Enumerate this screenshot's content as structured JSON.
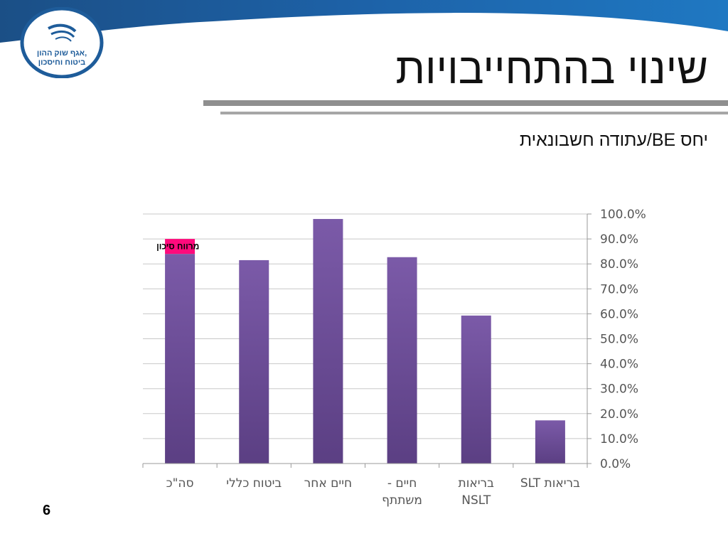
{
  "header": {
    "title": "שינוי בהתחייבויות",
    "subtitle": "יחס BE/עתודה חשבונאית",
    "logo_text_line1": "אגף שוק ההון,",
    "logo_text_line2": "ביטוח וחיסכון"
  },
  "footer": {
    "page_number": "6"
  },
  "colors": {
    "banner": "#1e5c9a",
    "bar_top": "#7b5aa8",
    "bar_bottom": "#5b3f83",
    "risk_margin": "#ff0a7c",
    "grid": "#c8c8c8"
  },
  "chart_data": {
    "type": "bar",
    "stacked": true,
    "categories": [
      [
        "סה\"כ"
      ],
      [
        "ביטוח כללי"
      ],
      [
        "חיים אחר"
      ],
      [
        "חיים -",
        "משתתף"
      ],
      [
        "בריאות",
        "NSLT"
      ],
      [
        "בריאות SLT"
      ]
    ],
    "series": [
      {
        "values": [
          84.0,
          81.5,
          98.0,
          82.7,
          59.3,
          17.3
        ]
      },
      {
        "name": "מרווח סיכון",
        "values": [
          6.0,
          0,
          0,
          0,
          0,
          0
        ]
      }
    ],
    "annotation": "מרווח סיכון",
    "ylim": [
      0,
      100
    ],
    "yticks": [
      "0.0%",
      "10.0%",
      "20.0%",
      "30.0%",
      "40.0%",
      "50.0%",
      "60.0%",
      "70.0%",
      "80.0%",
      "90.0%",
      "100.0%"
    ],
    "yaxis_position": "right",
    "grid": true,
    "xlabel": "",
    "ylabel": ""
  }
}
